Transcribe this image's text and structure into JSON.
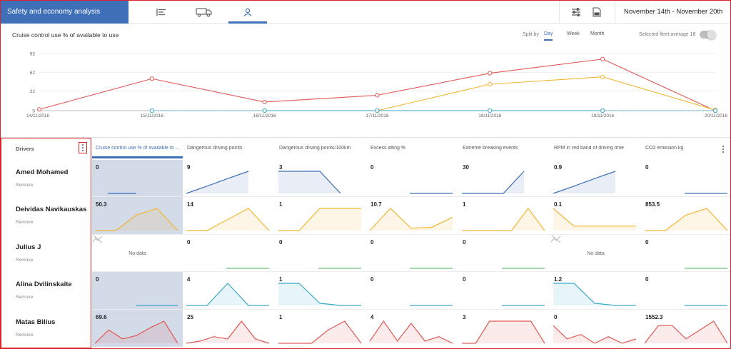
{
  "header": {
    "app_title": "Safety and economy analysis",
    "nav_tabs": [
      {
        "icon": "list-icon",
        "active": false
      },
      {
        "icon": "truck-icon",
        "active": false
      },
      {
        "icon": "person-icon",
        "active": true
      }
    ],
    "right_icons": [
      "sliders-icon",
      "report-icon"
    ],
    "date_range": "November 14th - November 20th"
  },
  "chart": {
    "title": "Cruise control use % of available to use",
    "split_label": "Split by",
    "split_options": [
      {
        "label": "Day",
        "active": true
      },
      {
        "label": "Week",
        "active": false
      },
      {
        "label": "Month",
        "active": false
      }
    ],
    "fleet_average_label": "Selected fleet average 18"
  },
  "chart_data": {
    "type": "line",
    "title": "Cruise control use % of available to use",
    "categories": [
      "14/11/2016",
      "15/11/2016",
      "16/11/2016",
      "17/11/2016",
      "18/11/2016",
      "19/11/2016",
      "20/11/2016"
    ],
    "yticks": [
      0,
      32,
      62,
      93
    ],
    "ylim": [
      0,
      93
    ],
    "grid": true,
    "series": [
      {
        "color": "#e05a56",
        "values": [
          2,
          52,
          14,
          25,
          61,
          84,
          0
        ]
      },
      {
        "color": "#f2b632",
        "values": [
          null,
          null,
          0,
          0,
          43,
          55,
          1
        ]
      },
      {
        "color": "#3aa7c7",
        "values": [
          null,
          0,
          0,
          0,
          0,
          0,
          0
        ],
        "dashed_segments": [
          [
            1,
            2
          ],
          [
            5,
            6
          ]
        ]
      }
    ]
  },
  "table": {
    "drivers_header": "Drivers",
    "remove_label": "Remove",
    "no_data_label": "No data",
    "columns": [
      "Cruise control use % of available to ...",
      "Dangerous driving points",
      "Dangerous driving points/100km",
      "Excess idling %",
      "Extreme breaking events",
      "RPM in red band of driving time",
      "CO2 emission kg"
    ],
    "rows": [
      {
        "name": "Amed Mohamed",
        "color": "#3f6fb7",
        "values": [
          "0",
          "9",
          "3",
          "0",
          "30",
          "0.9",
          "0"
        ],
        "sparks": [
          [
            0,
            0,
            0,
            0,
            0
          ],
          [
            0,
            0.33,
            0.67,
            1,
            null
          ],
          [
            1,
            1,
            1,
            0,
            null
          ],
          [
            0,
            0,
            0,
            0,
            0
          ],
          [
            0,
            0,
            0,
            1,
            null
          ],
          [
            0,
            0.33,
            0.67,
            1,
            null
          ],
          [
            0,
            0,
            0,
            0,
            0
          ]
        ],
        "selected": [
          true,
          false,
          false,
          false,
          false,
          false,
          false
        ],
        "nodata": [
          false,
          false,
          false,
          false,
          false,
          false,
          false
        ]
      },
      {
        "name": "Deividas Navikauskas",
        "color": "#f2b632",
        "values": [
          "50.3",
          "14",
          "1",
          "10.7",
          "1",
          "0.1",
          "853.5"
        ],
        "sparks": [
          [
            0,
            0,
            0.7,
            1,
            0
          ],
          [
            0,
            0,
            0.5,
            1,
            0
          ],
          [
            0,
            0,
            1,
            1,
            1
          ],
          [
            0,
            1,
            0.1,
            0.15,
            0.6
          ],
          [
            0,
            0,
            0,
            0,
            1,
            0
          ],
          [
            1,
            0.2,
            0.2,
            0.2,
            0.2
          ],
          [
            0,
            0,
            0.7,
            1,
            0
          ]
        ],
        "selected": [
          true,
          false,
          false,
          false,
          false,
          false,
          false
        ],
        "nodata": [
          false,
          false,
          false,
          false,
          false,
          false,
          false
        ]
      },
      {
        "name": "Julius J",
        "color": "#6cc17a",
        "values": [
          "",
          "0",
          "0",
          "0",
          "0",
          "",
          "0"
        ],
        "sparks": [
          [],
          [
            0,
            0,
            0,
            0,
            0
          ],
          [
            0,
            0,
            0,
            0,
            0
          ],
          [
            0,
            0,
            0,
            0,
            0
          ],
          [
            0,
            0,
            0,
            0,
            0
          ],
          [],
          [
            0,
            0,
            0,
            0,
            0
          ]
        ],
        "selected": [
          false,
          false,
          false,
          false,
          false,
          false,
          false
        ],
        "nodata": [
          true,
          false,
          false,
          false,
          false,
          true,
          false
        ]
      },
      {
        "name": "Alina Dvilinskaite",
        "color": "#3aa7c7",
        "values": [
          "0",
          "4",
          "1",
          "0",
          "0",
          "1.2",
          "0"
        ],
        "sparks": [
          [
            0,
            0,
            0,
            0,
            0
          ],
          [
            0,
            0,
            1,
            0,
            0
          ],
          [
            1,
            1,
            0.1,
            0,
            0
          ],
          [
            0,
            0,
            0,
            0,
            0
          ],
          [
            0,
            0,
            0,
            0,
            0
          ],
          [
            1,
            1,
            0.1,
            0,
            0
          ],
          [
            0,
            0,
            0,
            0,
            0
          ]
        ],
        "selected": [
          true,
          false,
          false,
          false,
          false,
          false,
          false
        ],
        "nodata": [
          false,
          false,
          false,
          false,
          false,
          false,
          false
        ]
      },
      {
        "name": "Matas Bilius",
        "color": "#e05a56",
        "values": [
          "69.6",
          "25",
          "1",
          "4",
          "3",
          "0",
          "1552.3"
        ],
        "sparks": [
          [
            0,
            0.6,
            0.2,
            0.35,
            0.7,
            1,
            0
          ],
          [
            0,
            0.1,
            0.3,
            0.2,
            1,
            0.2,
            0
          ],
          [
            0,
            0,
            0,
            0.6,
            1,
            0
          ],
          [
            0.1,
            1,
            0.1,
            0.9,
            0.1,
            0.3,
            0
          ],
          [
            0,
            0,
            1,
            1,
            1,
            1,
            0
          ],
          [
            0.8,
            0.2,
            0.4,
            0,
            0.3,
            0,
            0.2
          ],
          [
            0,
            0.8,
            0.8,
            0.2,
            0.6,
            1,
            0
          ]
        ],
        "selected": [
          true,
          false,
          false,
          false,
          false,
          false,
          false
        ],
        "nodata": [
          false,
          false,
          false,
          false,
          false,
          false,
          false
        ]
      }
    ]
  }
}
